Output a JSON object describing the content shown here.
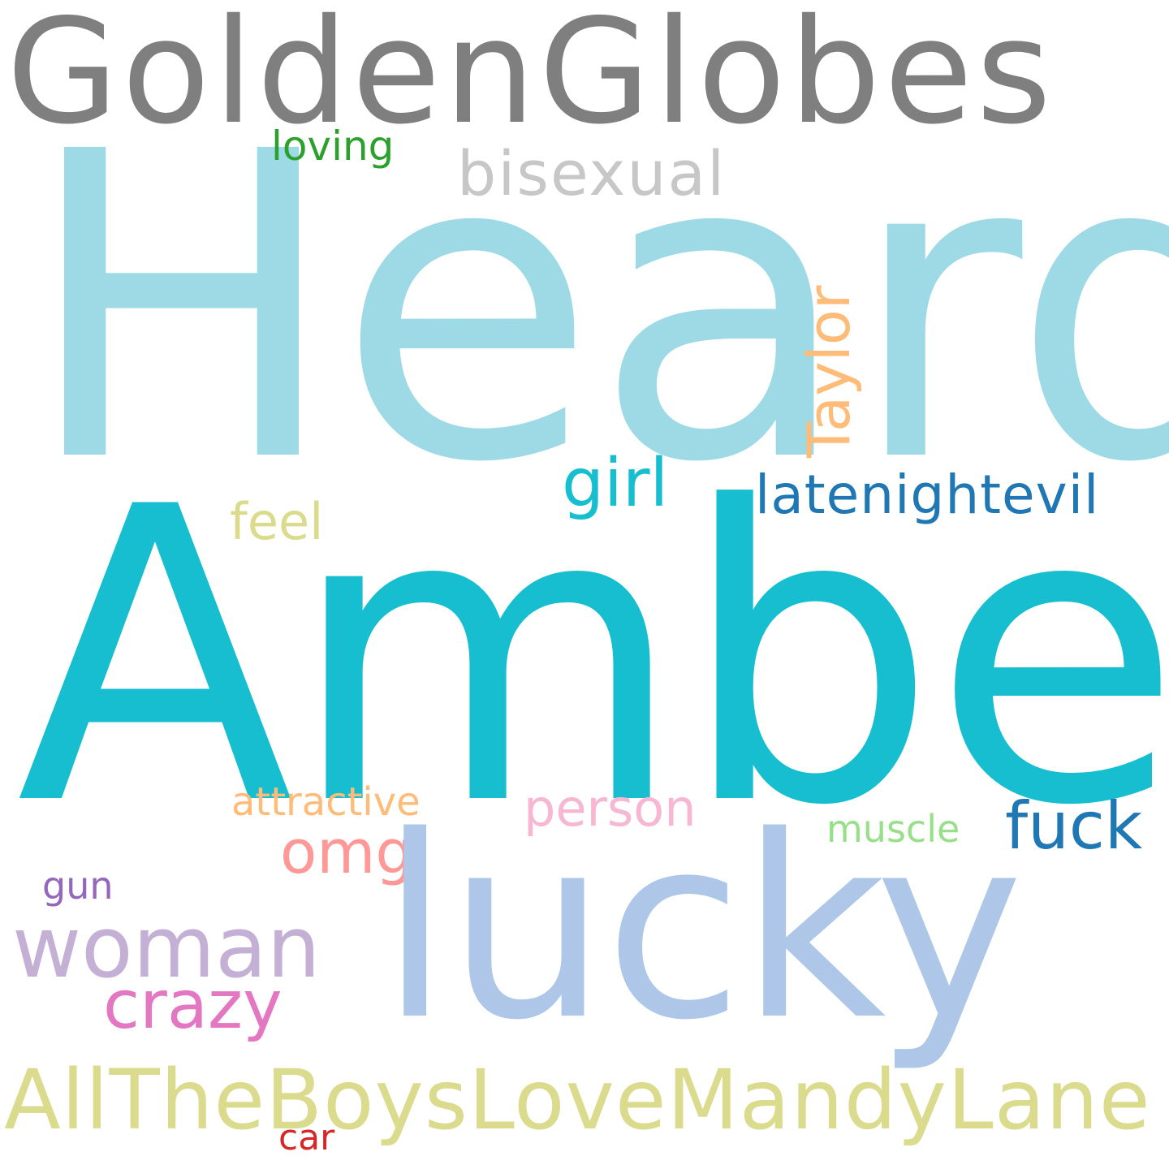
{
  "words": {
    "goldenglobes": {
      "text": "GoldenGlobes",
      "color": "#7f7f7f"
    },
    "heard": {
      "text": "Heard",
      "color": "#9edae5"
    },
    "loving": {
      "text": "loving",
      "color": "#2ca02c"
    },
    "bisexual": {
      "text": "bisexual",
      "color": "#c7c7c7"
    },
    "taylor": {
      "text": "Taylor",
      "color": "#ffbb78"
    },
    "girl": {
      "text": "girl",
      "color": "#17becf"
    },
    "latenightevil": {
      "text": "latenightevil",
      "color": "#1f77b4"
    },
    "feel": {
      "text": "feel",
      "color": "#dbdb8d"
    },
    "amber": {
      "text": "Amber",
      "color": "#17becf"
    },
    "attractive": {
      "text": "attractive",
      "color": "#ffbb78"
    },
    "person": {
      "text": "person",
      "color": "#f7b6d2"
    },
    "fuck": {
      "text": "fuck",
      "color": "#1f77b4"
    },
    "muscle": {
      "text": "muscle",
      "color": "#98df8a"
    },
    "omg": {
      "text": "omg",
      "color": "#ff9896"
    },
    "lucky": {
      "text": "lucky",
      "color": "#aec7e8"
    },
    "gun": {
      "text": "gun",
      "color": "#9467bd"
    },
    "woman": {
      "text": "woman",
      "color": "#c5b0d5"
    },
    "crazy": {
      "text": "crazy",
      "color": "#e377c2"
    },
    "allboys": {
      "text": "AllTheBoysLoveMandyLane",
      "color": "#dbdb8d"
    },
    "car": {
      "text": "car",
      "color": "#d62728"
    }
  }
}
